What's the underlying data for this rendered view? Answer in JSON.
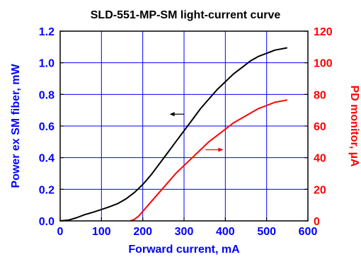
{
  "chart_data": {
    "type": "line",
    "title": "SLD-551-MP-SM light-current curve",
    "xlabel": "Forward current, mA",
    "ylabel_left": "Power ex SM fiber, mW",
    "ylabel_right": "PD monitor, µA",
    "xlim": [
      0,
      600
    ],
    "ylim_left": [
      0,
      1.2
    ],
    "ylim_right": [
      0,
      120
    ],
    "x_ticks": [
      "0",
      "100",
      "200",
      "300",
      "400",
      "500",
      "600"
    ],
    "y_left_ticks": [
      "0.0",
      "0.2",
      "0.4",
      "0.6",
      "0.8",
      "1.0",
      "1.2"
    ],
    "y_right_ticks": [
      "0",
      "20",
      "40",
      "60",
      "80",
      "100",
      "120"
    ],
    "grid": true,
    "colors": {
      "left_axis": "#0000ff",
      "right_axis": "#ff0000",
      "grid": "#0000ff",
      "power_series": "#000000",
      "monitor_series": "#ff0000"
    },
    "series": [
      {
        "axis": "left",
        "x": [
          0,
          20,
          40,
          60,
          80,
          100,
          120,
          140,
          160,
          180,
          200,
          220,
          240,
          260,
          280,
          300,
          320,
          340,
          360,
          380,
          400,
          420,
          440,
          460,
          480,
          500,
          520,
          540,
          550
        ],
        "values": [
          0.0,
          0.005,
          0.02,
          0.04,
          0.055,
          0.072,
          0.09,
          0.11,
          0.14,
          0.18,
          0.23,
          0.29,
          0.36,
          0.43,
          0.5,
          0.57,
          0.64,
          0.71,
          0.77,
          0.83,
          0.88,
          0.93,
          0.97,
          1.01,
          1.04,
          1.06,
          1.08,
          1.09,
          1.095
        ]
      },
      {
        "axis": "right",
        "x": [
          170,
          180,
          190,
          200,
          220,
          240,
          260,
          280,
          300,
          320,
          340,
          360,
          380,
          400,
          420,
          440,
          460,
          480,
          500,
          520,
          540,
          550
        ],
        "values": [
          0,
          1,
          3,
          6,
          12,
          18,
          24,
          30,
          35,
          40,
          45,
          50,
          54,
          58,
          62,
          65,
          68,
          71,
          73,
          75,
          76,
          76.5
        ]
      }
    ],
    "arrows": [
      {
        "series": "power",
        "direction": "left",
        "x_from": 300,
        "x_to": 265,
        "y": 0.675,
        "axis": "left"
      },
      {
        "series": "monitor",
        "direction": "right",
        "x_from": 352,
        "x_to": 395,
        "y": 45,
        "axis": "right"
      }
    ]
  }
}
